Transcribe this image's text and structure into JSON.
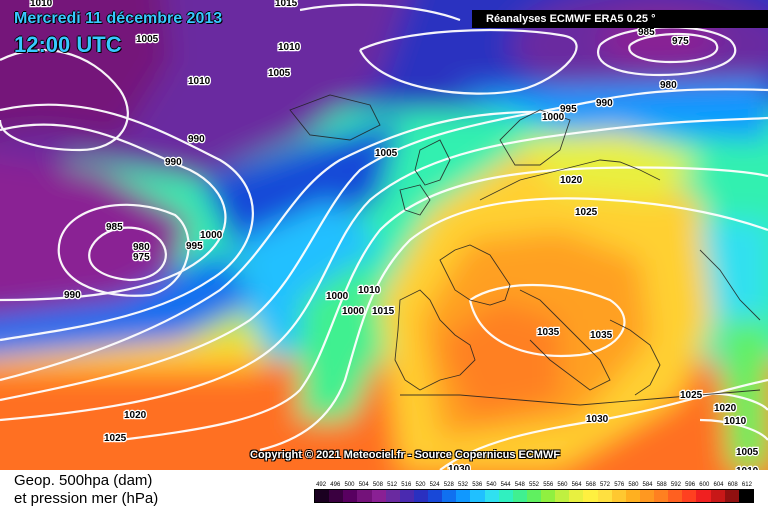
{
  "header": {
    "date": "Mercredi 11 décembre 2013",
    "time": "12:00 UTC",
    "source": "Réanalyses ECMWF ERA5 0.25 °"
  },
  "copyright": "Copyright © 2021 Meteociel.fr - Source Copernicus ECMWF",
  "legend": {
    "line1": "Geop. 500hpa (dam)",
    "line2": "et pression mer (hPa)",
    "scale_values": [
      "492",
      "496",
      "500",
      "504",
      "508",
      "512",
      "516",
      "520",
      "524",
      "528",
      "532",
      "536",
      "540",
      "544",
      "548",
      "552",
      "556",
      "560",
      "564",
      "568",
      "572",
      "576",
      "580",
      "584",
      "588",
      "592",
      "596",
      "600",
      "604",
      "608",
      "612"
    ],
    "scale_colors": [
      "#1a0020",
      "#3a0040",
      "#580060",
      "#74127a",
      "#8a2094",
      "#6a2aa0",
      "#4a2ab0",
      "#2a30c0",
      "#1848d8",
      "#1070f0",
      "#1098ff",
      "#20c0ff",
      "#30e0f0",
      "#30f0c0",
      "#40f090",
      "#60f060",
      "#90f040",
      "#c0f040",
      "#e8f040",
      "#fff040",
      "#ffe040",
      "#ffc830",
      "#ffb020",
      "#ff9820",
      "#ff8020",
      "#ff6020",
      "#ff4020",
      "#f02020",
      "#c81818",
      "#901010",
      "#000000"
    ]
  },
  "isobar_labels": [
    {
      "text": "1010"
    },
    {
      "text": "1005"
    },
    {
      "text": "1015"
    },
    {
      "text": "1010"
    },
    {
      "text": "1005"
    },
    {
      "text": "1010"
    },
    {
      "text": "990"
    },
    {
      "text": "990"
    },
    {
      "text": "1005"
    },
    {
      "text": "1000"
    },
    {
      "text": "995"
    },
    {
      "text": "985"
    },
    {
      "text": "980"
    },
    {
      "text": "975"
    },
    {
      "text": "990"
    },
    {
      "text": "1000"
    },
    {
      "text": "1010"
    },
    {
      "text": "1000"
    },
    {
      "text": "1015"
    },
    {
      "text": "985"
    },
    {
      "text": "975"
    },
    {
      "text": "980"
    },
    {
      "text": "990"
    },
    {
      "text": "995"
    },
    {
      "text": "1000"
    },
    {
      "text": "1020"
    },
    {
      "text": "1025"
    },
    {
      "text": "1035"
    },
    {
      "text": "1035"
    },
    {
      "text": "1030"
    },
    {
      "text": "1025"
    },
    {
      "text": "1020"
    },
    {
      "text": "1010"
    },
    {
      "text": "1005"
    },
    {
      "text": "1010"
    },
    {
      "text": "1020"
    },
    {
      "text": "1025"
    },
    {
      "text": "1030"
    }
  ]
}
